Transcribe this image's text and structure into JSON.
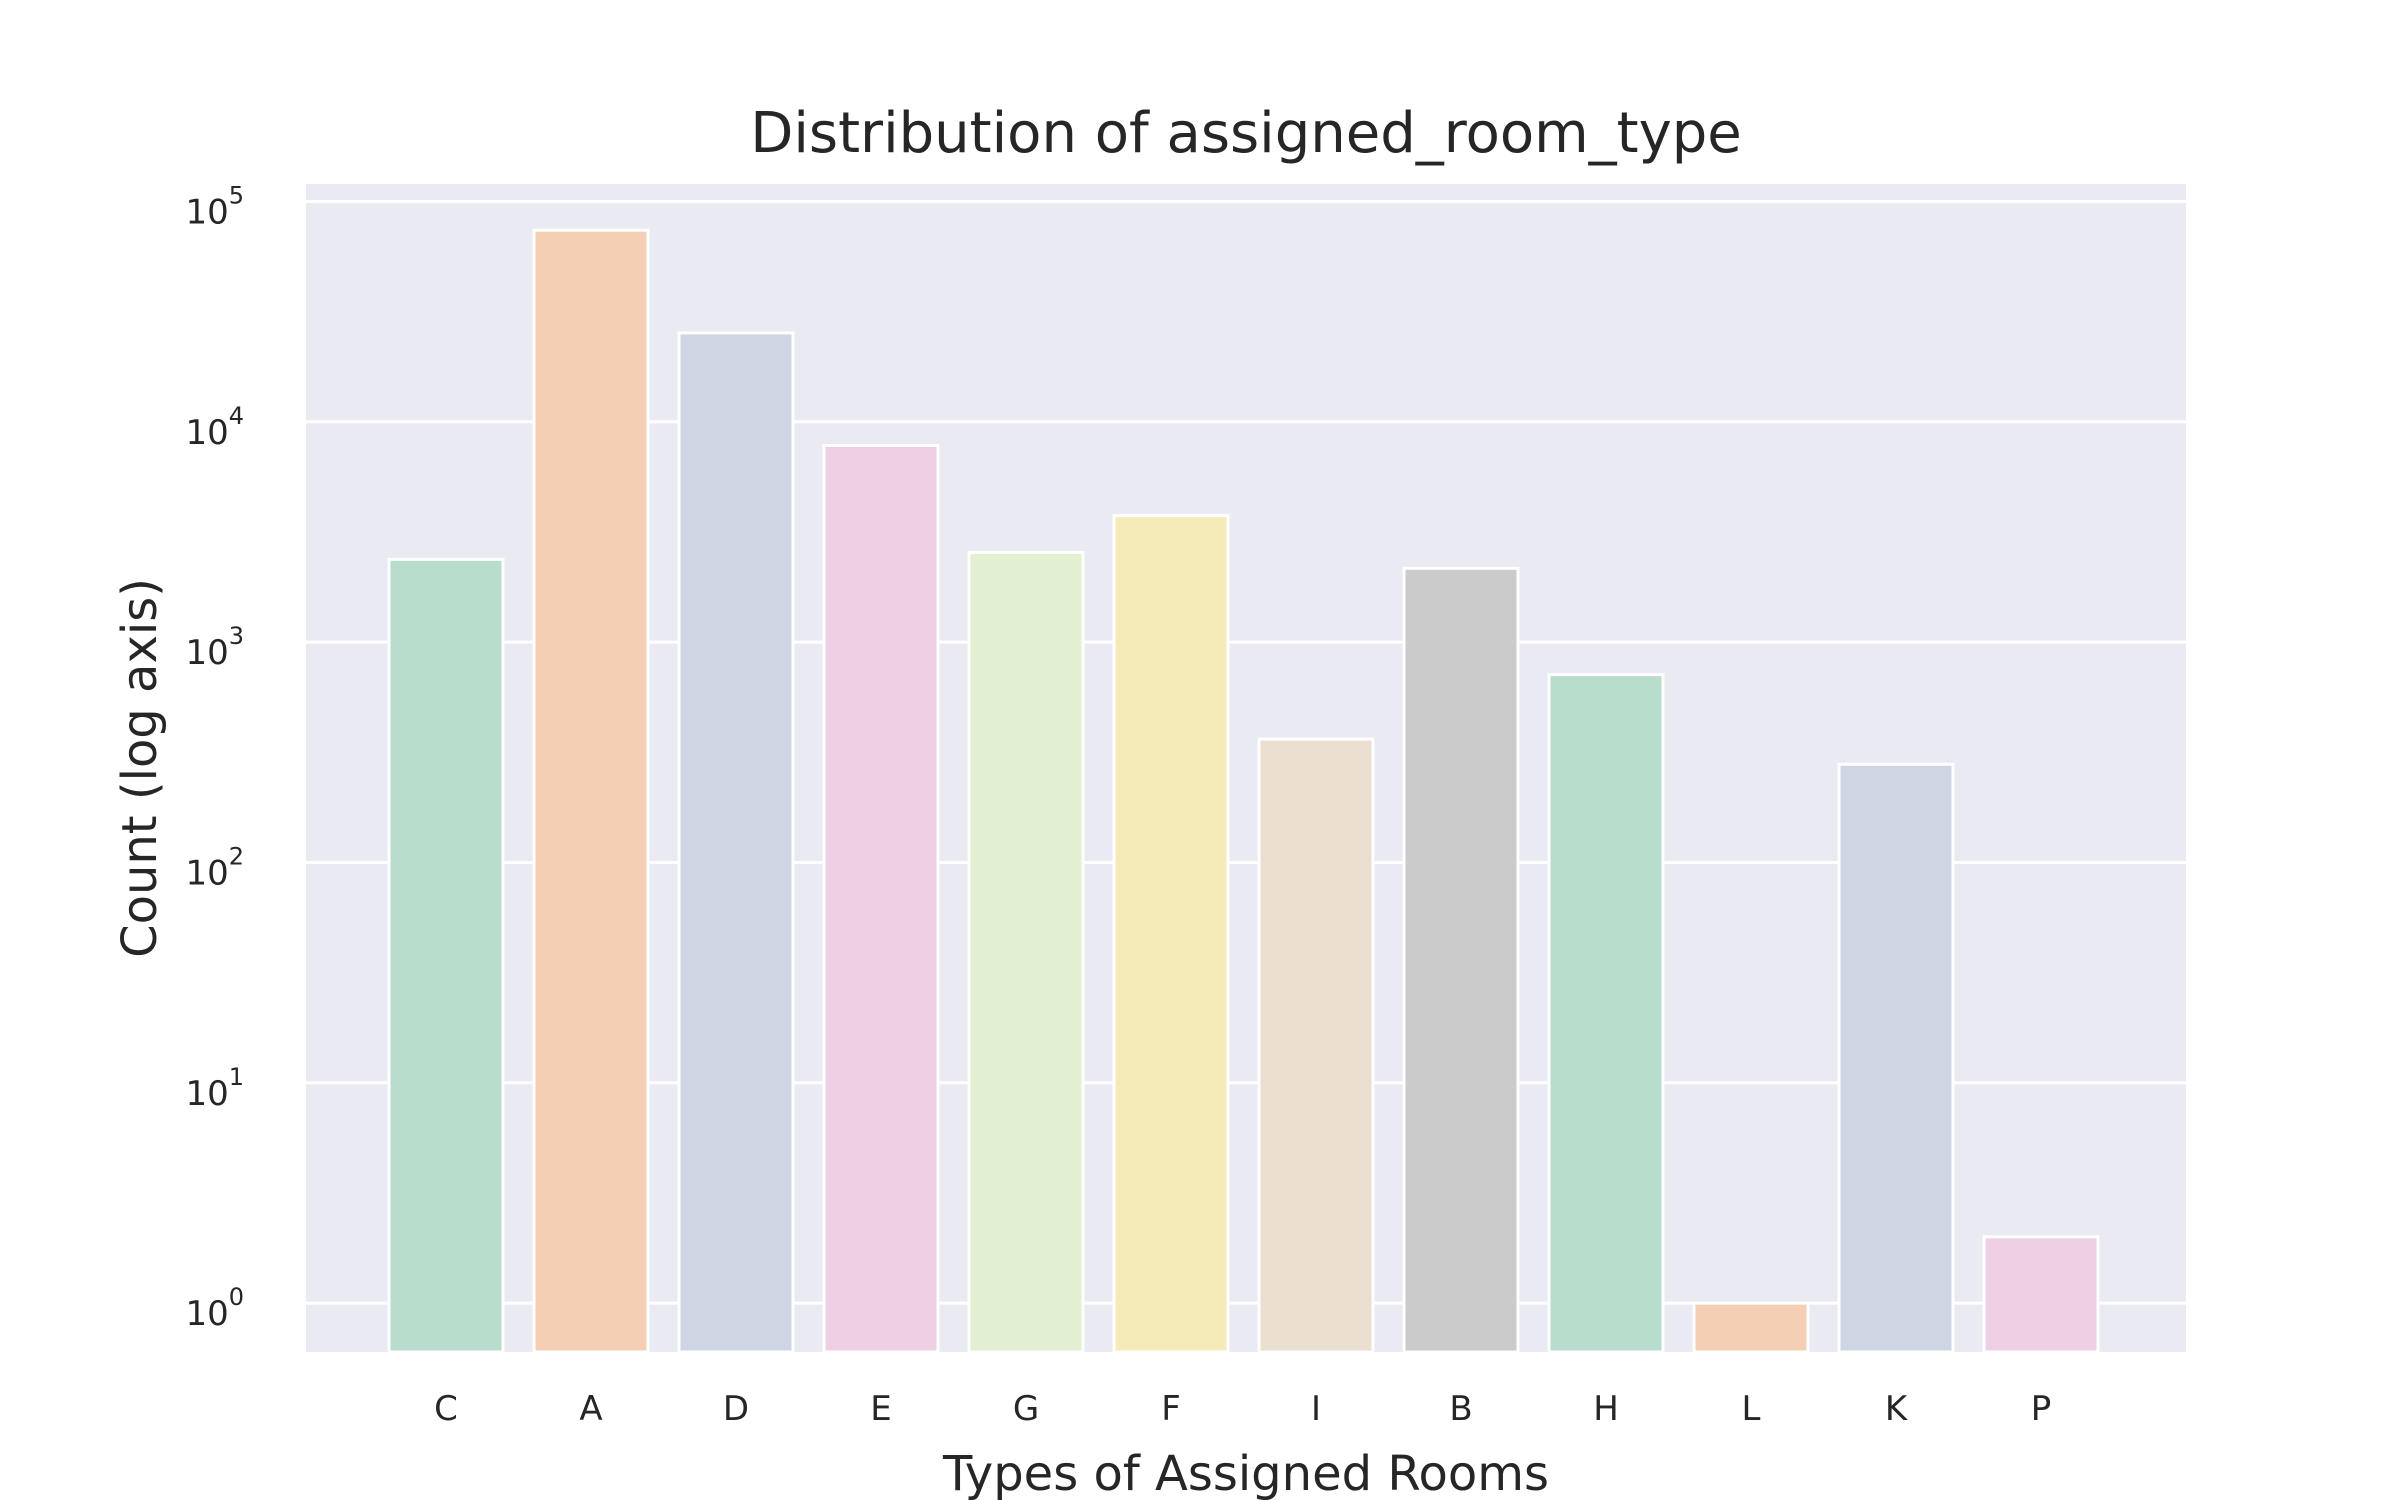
{
  "chart_data": {
    "type": "bar",
    "title": "Distribution of assigned_room_type",
    "xlabel": "Types of Assigned Rooms",
    "ylabel": "Count (log axis)",
    "yscale": "log",
    "ylim": [
      0.6,
      120000
    ],
    "yticks": [
      {
        "base": "10",
        "exp": "0",
        "value": 1
      },
      {
        "base": "10",
        "exp": "1",
        "value": 10
      },
      {
        "base": "10",
        "exp": "2",
        "value": 100
      },
      {
        "base": "10",
        "exp": "3",
        "value": 1000
      },
      {
        "base": "10",
        "exp": "4",
        "value": 10000
      },
      {
        "base": "10",
        "exp": "5",
        "value": 100000
      }
    ],
    "grid": true,
    "categories": [
      "C",
      "A",
      "D",
      "E",
      "G",
      "F",
      "I",
      "B",
      "H",
      "L",
      "K",
      "P"
    ],
    "values": [
      2375,
      74053,
      25322,
      7806,
      2553,
      3751,
      363,
      2163,
      712,
      1,
      279,
      2
    ],
    "colors": [
      "#b9ddcc",
      "#f4cfb4",
      "#cfd6e3",
      "#efcfe4",
      "#e3efd1",
      "#f5ebb8",
      "#ebdfcf",
      "#cbcbcb",
      "#b9ddcc",
      "#f4cfb4",
      "#cfd6e3",
      "#efcfe4"
    ],
    "background": "#eaeaf2",
    "grid_color": "#ffffff"
  }
}
